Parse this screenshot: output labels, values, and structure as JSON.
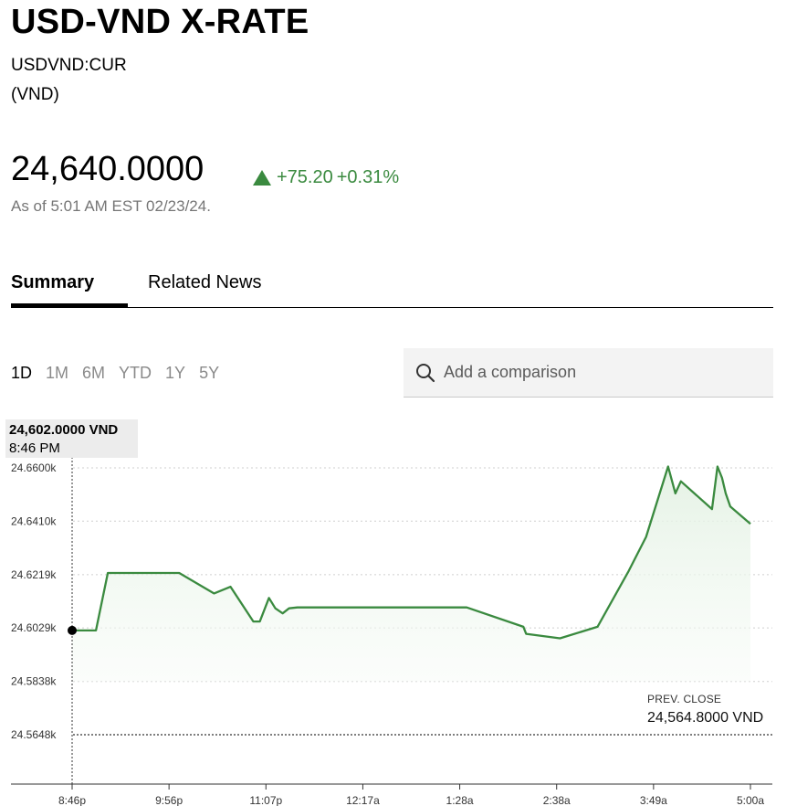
{
  "header": {
    "title": "USD-VND X-RATE",
    "ticker": "USDVND:CUR",
    "currency": "(VND)",
    "price": "24,640.0000",
    "change_abs": "+75.20",
    "change_pct": "+0.31%",
    "as_of": "As of 5:01 AM EST 02/23/24."
  },
  "tabs": [
    {
      "label": "Summary",
      "active": true
    },
    {
      "label": "Related News",
      "active": false
    }
  ],
  "ranges": [
    {
      "label": "1D",
      "active": true
    },
    {
      "label": "1M",
      "active": false
    },
    {
      "label": "6M",
      "active": false
    },
    {
      "label": "YTD",
      "active": false
    },
    {
      "label": "1Y",
      "active": false
    },
    {
      "label": "5Y",
      "active": false
    }
  ],
  "compare": {
    "placeholder": "Add a comparison",
    "icon": "search-icon"
  },
  "tooltip": {
    "value": "24,602.0000 VND",
    "time": "8:46 PM"
  },
  "prev_close": {
    "label": "PREV. CLOSE",
    "value": "24,564.8000 VND"
  },
  "colors": {
    "line": "#3a8a3f",
    "fill": "#eef7ee",
    "muted": "#767676"
  },
  "chart_data": {
    "type": "line",
    "series": [
      {
        "x": [
          0,
          0.26,
          0.39,
          1.17,
          1.55,
          1.73,
          1.98,
          2.05,
          2.15,
          2.22,
          2.3,
          2.37,
          2.46,
          4.31,
          4.93,
          4.96,
          5.33,
          5.74,
          6.08,
          6.27,
          6.51,
          6.59,
          6.65,
          6.99,
          7.05,
          7.1,
          7.14,
          7.19,
          7.25,
          7.41
        ],
        "y": [
          24602,
          24602,
          24622.5,
          24622.5,
          24615.2,
          24617.6,
          24605.2,
          24605.2,
          24613.6,
          24609.9,
          24608.1,
          24609.9,
          24610.2,
          24610.2,
          24603.3,
          24600.8,
          24599.2,
          24603.3,
          24623.2,
          24635.4,
          24660.5,
          24650.9,
          24655.2,
          24645.3,
          24660.5,
          24656.4,
          24650.9,
          24646.2,
          24644.5,
          24640
        ]
      }
    ],
    "x_tick_labels": [
      "8:46p",
      "9:56p",
      "11:07p",
      "12:17a",
      "1:28a",
      "2:38a",
      "3:49a",
      "5:00a"
    ],
    "y_tick_labels": [
      "24.6600k",
      "24.6410k",
      "24.6219k",
      "24.6029k",
      "24.5838k",
      "24.5648k"
    ],
    "y_ticks": [
      24660.0,
      24641.0,
      24621.9,
      24602.9,
      24583.8,
      24564.8
    ],
    "ylim": [
      24564.8,
      24660.0
    ],
    "xlim": [
      0,
      7.41
    ],
    "x_units": "hours after 8:46 PM",
    "prev_close": 24564.8,
    "grid": true
  }
}
